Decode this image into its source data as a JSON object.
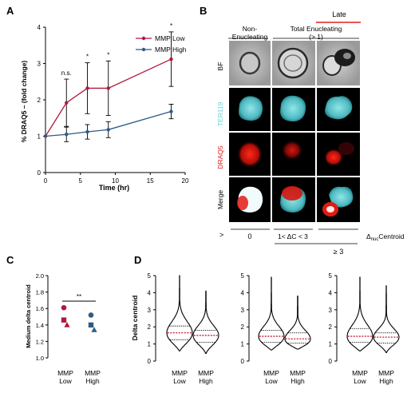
{
  "panels": {
    "A": "A",
    "B": "B",
    "C": "C",
    "D": "D"
  },
  "colors": {
    "low": "#b0183e",
    "high": "#2e5b86",
    "median": "#c0001e",
    "cyan": "#6ed3d8",
    "red": "#e0201a"
  },
  "chart_data": [
    {
      "type": "line",
      "panel": "A",
      "xlabel": "Time (hr)",
      "ylabel": "% DRAQ5 – (fold change)",
      "xlim": [
        0,
        20
      ],
      "ylim": [
        0,
        4
      ],
      "xticks": [
        0,
        5,
        10,
        15,
        20
      ],
      "yticks": [
        0,
        1,
        2,
        3,
        4
      ],
      "legend_position": "top-right",
      "series": [
        {
          "name": "MMP Low",
          "x": [
            0,
            3,
            6,
            9,
            18
          ],
          "y": [
            1.0,
            1.92,
            2.32,
            2.32,
            3.12
          ],
          "err": [
            0,
            0.65,
            0.7,
            0.75,
            0.75
          ],
          "color": "#b0183e"
        },
        {
          "name": "MMP High",
          "x": [
            0,
            3,
            6,
            9,
            18
          ],
          "y": [
            1.0,
            1.05,
            1.12,
            1.18,
            1.68
          ],
          "err": [
            0,
            0.2,
            0.2,
            0.22,
            0.2
          ],
          "color": "#2e5b86"
        }
      ],
      "annotations": [
        {
          "x": 3,
          "text": "n.s."
        },
        {
          "x": 6,
          "text": "*"
        },
        {
          "x": 9,
          "text": "*"
        },
        {
          "x": 18,
          "text": "*"
        }
      ]
    },
    {
      "type": "scatter",
      "panel": "C",
      "ylabel": "Medium delta centroid",
      "ylim": [
        1.0,
        2.0
      ],
      "yticks": [
        1.0,
        1.2,
        1.4,
        1.6,
        1.8,
        2.0
      ],
      "categories": [
        "MMP\nLow",
        "MMP\nHigh"
      ],
      "series": [
        {
          "name": "MMP Low",
          "color": "#b0183e",
          "points": [
            {
              "shape": "circle",
              "y": 1.61
            },
            {
              "shape": "square",
              "y": 1.46
            },
            {
              "shape": "triangle",
              "y": 1.4
            }
          ]
        },
        {
          "name": "MMP High",
          "color": "#2e5b86",
          "points": [
            {
              "shape": "circle",
              "y": 1.52
            },
            {
              "shape": "square",
              "y": 1.4
            },
            {
              "shape": "triangle",
              "y": 1.34
            }
          ]
        }
      ],
      "significance": "**"
    },
    {
      "type": "violin",
      "panel": "D",
      "ylabel": "Delta centroid",
      "ylim": [
        0,
        5
      ],
      "yticks": [
        0,
        1,
        2,
        3,
        4,
        5
      ],
      "groups": [
        {
          "violins": [
            {
              "category": "MMP\nLow",
              "max": 5.0,
              "min": 0.6,
              "q1": 1.25,
              "median": 1.65,
              "q3": 2.05
            },
            {
              "category": "MMP\nHigh",
              "max": 4.1,
              "min": 0.45,
              "q1": 1.1,
              "median": 1.5,
              "q3": 1.8
            }
          ]
        },
        {
          "violins": [
            {
              "category": "MMP\nLow",
              "max": 4.9,
              "min": 0.65,
              "q1": 1.1,
              "median": 1.45,
              "q3": 1.8
            },
            {
              "category": "MMP\nHigh",
              "max": 3.8,
              "min": 0.7,
              "q1": 1.05,
              "median": 1.3,
              "q3": 1.65
            }
          ]
        },
        {
          "violins": [
            {
              "category": "MMP\nLow",
              "max": 4.9,
              "min": 0.6,
              "q1": 1.1,
              "median": 1.45,
              "q3": 1.9
            },
            {
              "category": "MMP\nHigh",
              "max": 4.4,
              "min": 0.5,
              "q1": 1.05,
              "median": 1.4,
              "q3": 1.65
            }
          ]
        }
      ]
    }
  ],
  "figureB": {
    "late_label": "Late",
    "col_headers": [
      "Non-\nEnucleating",
      "Total Enucleating\n(> 1)"
    ],
    "row_labels": [
      "BF",
      "TER119",
      "DRAQ5",
      "Merge"
    ],
    "threshold_symbol": ">",
    "bottom_values": [
      "0",
      "1< ΔC < 3",
      "≥ 3"
    ],
    "axis_label": "Δnuc Centroid"
  }
}
